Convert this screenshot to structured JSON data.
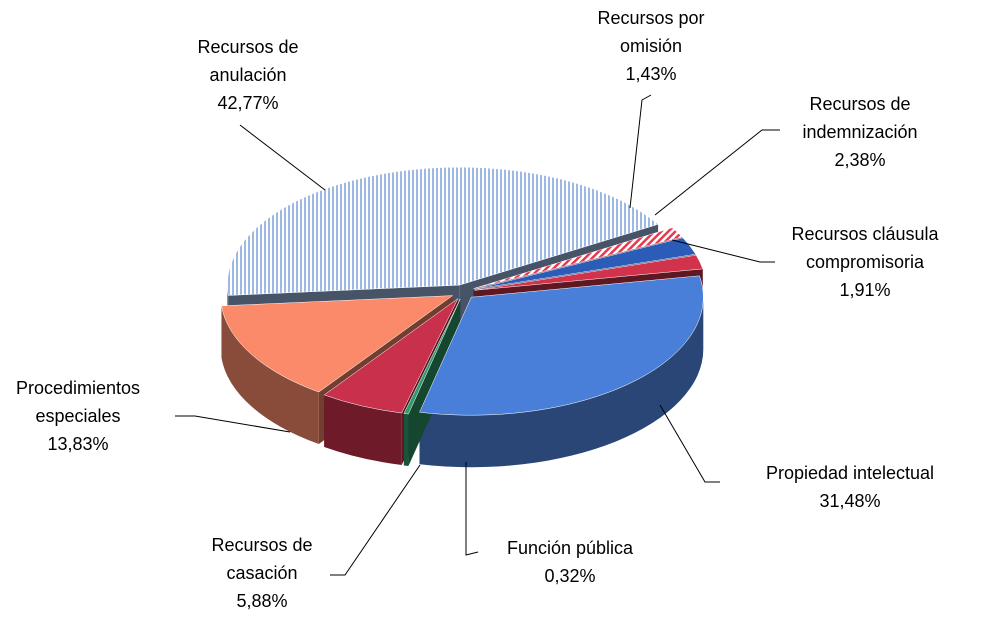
{
  "chart_data": {
    "type": "pie",
    "categories": [
      "Recursos de anulación",
      "Recursos por omisión",
      "Recursos de indemnización",
      "Recursos cláusula compromisoria",
      "Propiedad intelectual",
      "Función pública",
      "Recursos de casación",
      "Procedimientos especiales"
    ],
    "values": [
      42.77,
      1.43,
      2.38,
      1.91,
      31.48,
      0.32,
      5.88,
      13.83
    ],
    "value_labels": [
      "42,77%",
      "1,43%",
      "2,38%",
      "1,91%",
      "31,48%",
      "0,32%",
      "5,88%",
      "13,83%"
    ],
    "colors": [
      "#9db9e3",
      "#e8384f",
      "#2a5cb8",
      "#d2334c",
      "#4a7fd9",
      "#2f9b6b",
      "#c9304b",
      "#fa8a6a"
    ]
  }
}
